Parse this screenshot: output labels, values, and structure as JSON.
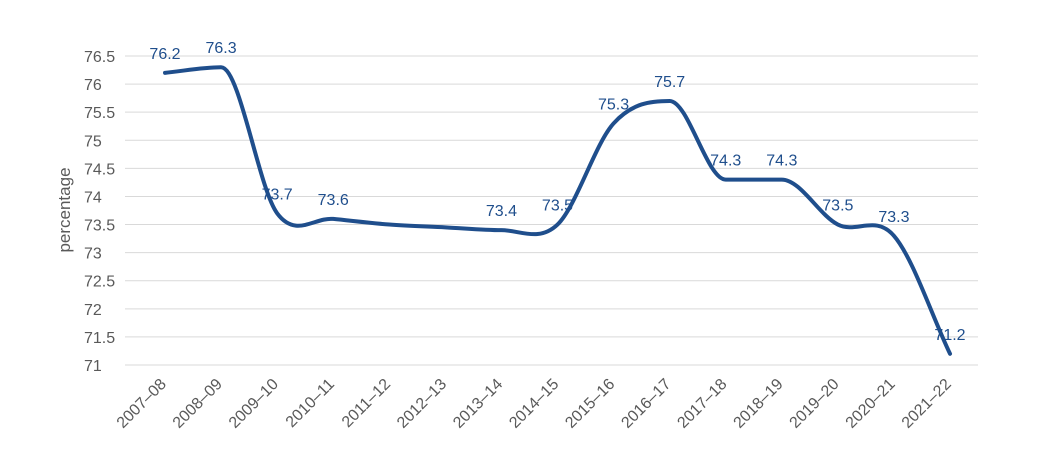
{
  "chart_data": {
    "type": "line",
    "title": "",
    "xlabel": "",
    "ylabel": "percentage",
    "ylim": [
      71,
      76.5
    ],
    "ytick_step": 0.5,
    "grid": true,
    "categories": [
      "2007–08",
      "2008–09",
      "2009–10",
      "2010–11",
      "2011–12",
      "2012–13",
      "2013–14",
      "2014–15",
      "2015–16",
      "2016–17",
      "2017–18",
      "2018–19",
      "2019–20",
      "2020–21",
      "2021–22"
    ],
    "series": [
      {
        "values": [
          76.2,
          76.3,
          73.7,
          73.6,
          73.5,
          73.45,
          73.4,
          73.5,
          75.3,
          75.7,
          74.3,
          74.3,
          73.5,
          73.3,
          71.2
        ],
        "data_labels": [
          "76.2",
          "76.3",
          "73.7",
          "73.6",
          "",
          "",
          "73.4",
          "73.5",
          "75.3",
          "75.7",
          "74.3",
          "74.3",
          "73.5",
          "73.3",
          "71.2"
        ],
        "color": "#1f4e8c"
      }
    ]
  }
}
